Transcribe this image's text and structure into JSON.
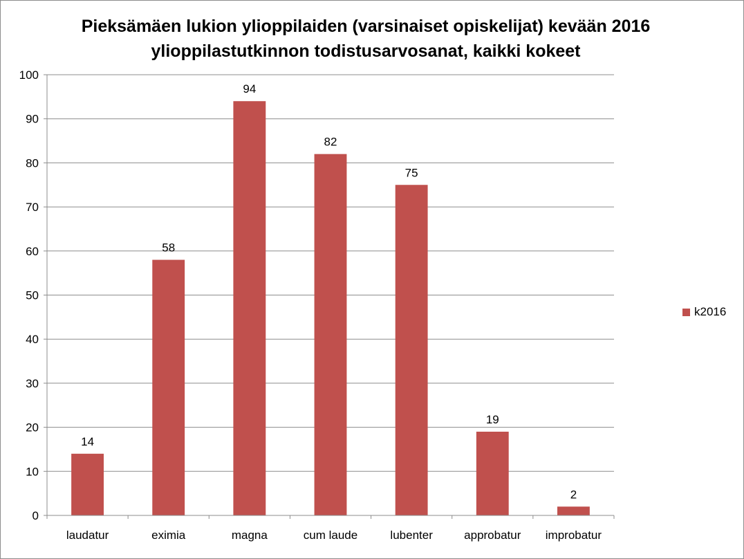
{
  "chart_data": {
    "type": "bar",
    "title_line1": "Pieksämäen lukion ylioppilaiden (varsinaiset opiskelijat) kevään 2016",
    "title_line2": "ylioppilastutkinnon todistusarvosanat, kaikki kokeet",
    "categories": [
      "laudatur",
      "eximia",
      "magna",
      "cum laude",
      "lubenter",
      "approbatur",
      "improbatur"
    ],
    "series": [
      {
        "name": "k2016",
        "values": [
          14,
          58,
          94,
          82,
          75,
          19,
          2
        ],
        "color": "#c0504d"
      }
    ],
    "xlabel": "",
    "ylabel": "",
    "ylim": [
      0,
      100
    ],
    "yticks": [
      0,
      10,
      20,
      30,
      40,
      50,
      60,
      70,
      80,
      90,
      100
    ],
    "grid": true,
    "data_labels": true,
    "legend": "right"
  }
}
